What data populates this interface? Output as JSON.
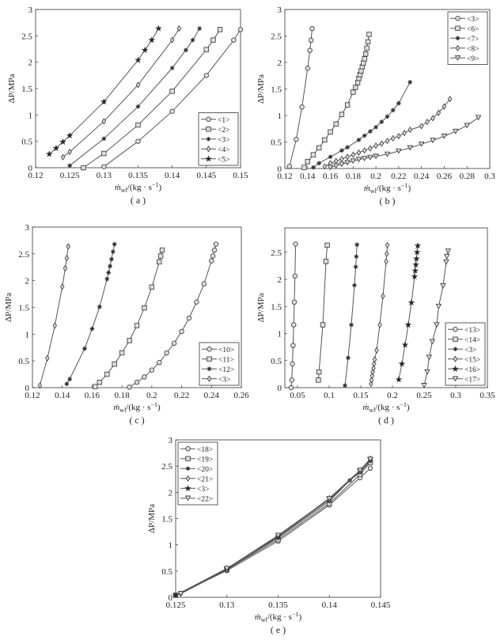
{
  "common": {
    "ylabel": "ΔP/MPa",
    "xlabel": {
      "symbol": "ṁ",
      "sub": "wl",
      "unit": "/(kg · s",
      "sup": "−1",
      "close": ")"
    },
    "line_color": "#555555"
  },
  "chart_data": [
    {
      "type": "line",
      "caption": "( a )",
      "xlim": [
        0.12,
        0.15
      ],
      "ylim": [
        0,
        3
      ],
      "xticks": [
        "0.12",
        "0.125",
        "0.13",
        "0.135",
        "0.14",
        "0.145",
        "0.15"
      ],
      "yticks": [
        "0",
        "0.5",
        "1",
        "1.5",
        "2",
        "2.5",
        "3"
      ],
      "legend_position": "bottom-right",
      "series": [
        {
          "name": "<1>",
          "marker": "circle",
          "x": [
            0.13,
            0.135,
            0.14,
            0.145,
            0.149,
            0.15
          ],
          "y": [
            0.02,
            0.5,
            1.07,
            1.75,
            2.42,
            2.62
          ]
        },
        {
          "name": "<2>",
          "marker": "square",
          "x": [
            0.127,
            0.13,
            0.135,
            0.14,
            0.145,
            0.146,
            0.147
          ],
          "y": [
            0,
            0.27,
            0.81,
            1.45,
            2.24,
            2.42,
            2.62
          ]
        },
        {
          "name": "<3>",
          "marker": "asterisk",
          "x": [
            0.125,
            0.13,
            0.135,
            0.14,
            0.142,
            0.143,
            0.144
          ],
          "y": [
            0.04,
            0.55,
            1.16,
            1.89,
            2.23,
            2.42,
            2.64
          ]
        },
        {
          "name": "<4>",
          "marker": "diamond",
          "x": [
            0.124,
            0.125,
            0.13,
            0.135,
            0.14,
            0.141
          ],
          "y": [
            0.2,
            0.3,
            0.88,
            1.57,
            2.42,
            2.64
          ]
        },
        {
          "name": "<5>",
          "marker": "hexagram",
          "x": [
            0.122,
            0.123,
            0.124,
            0.125,
            0.13,
            0.135,
            0.136,
            0.137,
            0.138
          ],
          "y": [
            0.26,
            0.37,
            0.49,
            0.61,
            1.25,
            2.04,
            2.23,
            2.42,
            2.64
          ]
        }
      ]
    },
    {
      "type": "line",
      "caption": "( b )",
      "xlim": [
        0.12,
        0.3
      ],
      "ylim": [
        0,
        3
      ],
      "xticks": [
        "0.12",
        "0.14",
        "0.16",
        "0.18",
        "0.2",
        "0.22",
        "0.24",
        "0.26",
        "0.28",
        "0.3"
      ],
      "yticks": [
        "0",
        "0.5",
        "1",
        "1.5",
        "2",
        "2.5",
        "3"
      ],
      "legend_position": "top-right",
      "series": [
        {
          "name": "<3>",
          "marker": "circle",
          "x": [
            0.124,
            0.13,
            0.135,
            0.14,
            0.142,
            0.143,
            0.144
          ],
          "y": [
            0.04,
            0.55,
            1.16,
            1.89,
            2.23,
            2.42,
            2.64
          ]
        },
        {
          "name": "<6>",
          "marker": "square",
          "x": [
            0.137,
            0.14,
            0.145,
            0.15,
            0.155,
            0.16,
            0.165,
            0.17,
            0.175,
            0.18,
            0.182,
            0.184,
            0.185,
            0.186,
            0.187,
            0.188,
            0.189,
            0.19,
            0.191,
            0.192,
            0.193,
            0.194
          ],
          "y": [
            0.02,
            0.13,
            0.26,
            0.39,
            0.54,
            0.69,
            0.84,
            1.02,
            1.2,
            1.44,
            1.53,
            1.62,
            1.7,
            1.77,
            1.84,
            1.92,
            1.99,
            2.07,
            2.16,
            2.27,
            2.39,
            2.53
          ]
        },
        {
          "name": "<7>",
          "marker": "asterisk",
          "x": [
            0.145,
            0.15,
            0.16,
            0.17,
            0.175,
            0.185,
            0.19,
            0.195,
            0.2,
            0.205,
            0.21,
            0.215,
            0.22,
            0.23
          ],
          "y": [
            0.02,
            0.1,
            0.22,
            0.34,
            0.4,
            0.54,
            0.62,
            0.7,
            0.78,
            0.88,
            0.98,
            1.1,
            1.23,
            1.63
          ]
        },
        {
          "name": "<8>",
          "marker": "diamond",
          "x": [
            0.155,
            0.16,
            0.165,
            0.17,
            0.175,
            0.18,
            0.185,
            0.19,
            0.195,
            0.2,
            0.205,
            0.21,
            0.215,
            0.22,
            0.225,
            0.23,
            0.24,
            0.245,
            0.25,
            0.255,
            0.26,
            0.265
          ],
          "y": [
            0.04,
            0.1,
            0.14,
            0.18,
            0.22,
            0.26,
            0.3,
            0.34,
            0.38,
            0.43,
            0.47,
            0.52,
            0.57,
            0.61,
            0.67,
            0.73,
            0.8,
            0.88,
            0.95,
            1.05,
            1.17,
            1.31
          ]
        },
        {
          "name": "<9>",
          "marker": "triangle-down",
          "x": [
            0.16,
            0.165,
            0.17,
            0.175,
            0.18,
            0.185,
            0.19,
            0.195,
            0.2,
            0.21,
            0.22,
            0.23,
            0.24,
            0.25,
            0.26,
            0.27,
            0.28,
            0.29
          ],
          "y": [
            0.02,
            0.05,
            0.08,
            0.11,
            0.14,
            0.17,
            0.19,
            0.21,
            0.23,
            0.27,
            0.33,
            0.39,
            0.46,
            0.53,
            0.61,
            0.7,
            0.81,
            0.96
          ]
        }
      ]
    },
    {
      "type": "line",
      "caption": "( c )",
      "xlim": [
        0.12,
        0.26
      ],
      "ylim": [
        0,
        3
      ],
      "xticks": [
        "0.12",
        "0.14",
        "0.16",
        "0.18",
        "0.2",
        "0.22",
        "0.24",
        "0.26"
      ],
      "yticks": [
        "0",
        "0.5",
        "1",
        "1.5",
        "2",
        "2.5",
        "3"
      ],
      "legend_position": "bottom-right",
      "series": [
        {
          "name": "<10>",
          "marker": "circle",
          "x": [
            0.185,
            0.19,
            0.195,
            0.2,
            0.205,
            0.21,
            0.215,
            0.22,
            0.225,
            0.23,
            0.235,
            0.24,
            0.241,
            0.242,
            0.243
          ],
          "y": [
            0.01,
            0.1,
            0.2,
            0.33,
            0.47,
            0.65,
            0.83,
            1.05,
            1.3,
            1.6,
            1.94,
            2.37,
            2.46,
            2.57,
            2.68
          ]
        },
        {
          "name": "<11>",
          "marker": "square",
          "x": [
            0.162,
            0.165,
            0.17,
            0.175,
            0.18,
            0.185,
            0.19,
            0.195,
            0.2,
            0.205,
            0.206,
            0.207
          ],
          "y": [
            0.02,
            0.1,
            0.25,
            0.44,
            0.65,
            0.88,
            1.16,
            1.49,
            1.88,
            2.35,
            2.46,
            2.57
          ]
        },
        {
          "name": "<12>",
          "marker": "asterisk",
          "x": [
            0.143,
            0.145,
            0.155,
            0.16,
            0.165,
            0.17,
            0.171,
            0.172,
            0.173,
            0.174,
            0.175
          ],
          "y": [
            0.07,
            0.16,
            0.73,
            1.1,
            1.51,
            2.03,
            2.15,
            2.27,
            2.4,
            2.54,
            2.68
          ]
        },
        {
          "name": "<3>",
          "marker": "diamond",
          "x": [
            0.125,
            0.13,
            0.135,
            0.14,
            0.142,
            0.143,
            0.144
          ],
          "y": [
            0.04,
            0.55,
            1.16,
            1.89,
            2.23,
            2.42,
            2.64
          ]
        }
      ]
    },
    {
      "type": "line",
      "caption": "( d )",
      "xlim": [
        0.03,
        0.35
      ],
      "ylim": [
        0,
        2.95
      ],
      "xticks": [
        "0.05",
        "0.1",
        "0.15",
        "0.2",
        "0.25",
        "0.3",
        "0.35"
      ],
      "yticks": [
        "0",
        "0.5",
        "1",
        "1.5",
        "2",
        "2.5"
      ],
      "legend_position": "bottom-right",
      "series": [
        {
          "name": "<13>",
          "marker": "circle",
          "x": [
            0.04,
            0.041,
            0.042,
            0.043,
            0.044,
            0.045,
            0.046,
            0.047
          ],
          "y": [
            0,
            0.14,
            0.44,
            0.78,
            1.16,
            1.58,
            2.06,
            2.65
          ]
        },
        {
          "name": "<14>",
          "marker": "square",
          "x": [
            0.083,
            0.084,
            0.09,
            0.095,
            0.097
          ],
          "y": [
            0.14,
            0.29,
            1.16,
            2.33,
            2.63
          ]
        },
        {
          "name": "<3>",
          "marker": "asterisk",
          "x": [
            0.125,
            0.13,
            0.135,
            0.14,
            0.142,
            0.143,
            0.144
          ],
          "y": [
            0.04,
            0.55,
            1.16,
            1.89,
            2.23,
            2.42,
            2.64
          ]
        },
        {
          "name": "<15>",
          "marker": "diamond",
          "x": [
            0.166,
            0.167,
            0.168,
            0.169,
            0.17,
            0.171,
            0.172,
            0.175,
            0.18,
            0.185,
            0.19,
            0.191,
            0.192
          ],
          "y": [
            0.07,
            0.14,
            0.22,
            0.29,
            0.36,
            0.44,
            0.52,
            0.69,
            1.16,
            1.69,
            2.33,
            2.47,
            2.63
          ]
        },
        {
          "name": "<16>",
          "marker": "hexagram",
          "x": [
            0.21,
            0.215,
            0.22,
            0.225,
            0.23,
            0.235,
            0.236,
            0.237,
            0.238,
            0.239,
            0.24
          ],
          "y": [
            0.15,
            0.44,
            0.79,
            1.16,
            1.57,
            2.05,
            2.16,
            2.27,
            2.38,
            2.5,
            2.62
          ]
        },
        {
          "name": "<17>",
          "marker": "triangle-down",
          "x": [
            0.25,
            0.255,
            0.258,
            0.263,
            0.27,
            0.273,
            0.28,
            0.285,
            0.286,
            0.288
          ],
          "y": [
            0.04,
            0.29,
            0.56,
            0.85,
            1.16,
            1.5,
            1.88,
            2.32,
            2.42,
            2.52
          ]
        }
      ]
    },
    {
      "type": "line",
      "caption": "( e )",
      "xlim": [
        0.125,
        0.145
      ],
      "ylim": [
        0,
        3
      ],
      "xticks": [
        "0.125",
        "0.13",
        "0.135",
        "0.14",
        "0.145"
      ],
      "yticks": [
        "0",
        "0.5",
        "1",
        "1.5",
        "2",
        "2.5",
        "3"
      ],
      "legend_position": "top-left",
      "series": [
        {
          "name": "<18>",
          "marker": "circle",
          "x": [
            0.125,
            0.13,
            0.135,
            0.14,
            0.143,
            0.144
          ],
          "y": [
            0.04,
            0.51,
            1.07,
            1.76,
            2.28,
            2.46
          ]
        },
        {
          "name": "<19>",
          "marker": "square",
          "x": [
            0.125,
            0.13,
            0.135,
            0.14,
            0.143,
            0.144
          ],
          "y": [
            0.04,
            0.53,
            1.1,
            1.79,
            2.34,
            2.57
          ]
        },
        {
          "name": "<20>",
          "marker": "asterisk",
          "x": [
            0.125,
            0.13,
            0.135,
            0.14,
            0.142,
            0.143,
            0.144
          ],
          "y": [
            0.04,
            0.54,
            1.13,
            1.83,
            2.23,
            2.38,
            2.6
          ]
        },
        {
          "name": "<21>",
          "marker": "diamond",
          "x": [
            0.1255,
            0.13,
            0.135,
            0.14,
            0.143,
            0.144
          ],
          "y": [
            0.07,
            0.52,
            1.15,
            1.86,
            2.4,
            2.62
          ]
        },
        {
          "name": "<3>",
          "marker": "hexagram",
          "x": [
            0.125,
            0.13,
            0.135,
            0.14,
            0.143,
            0.144
          ],
          "y": [
            0.04,
            0.55,
            1.16,
            1.89,
            2.42,
            2.64
          ]
        },
        {
          "name": "<22>",
          "marker": "triangle-down",
          "x": [
            0.1255,
            0.13,
            0.135,
            0.14,
            0.143,
            0.144
          ],
          "y": [
            0.07,
            0.55,
            1.18,
            1.88,
            2.42,
            2.63
          ]
        }
      ]
    }
  ]
}
